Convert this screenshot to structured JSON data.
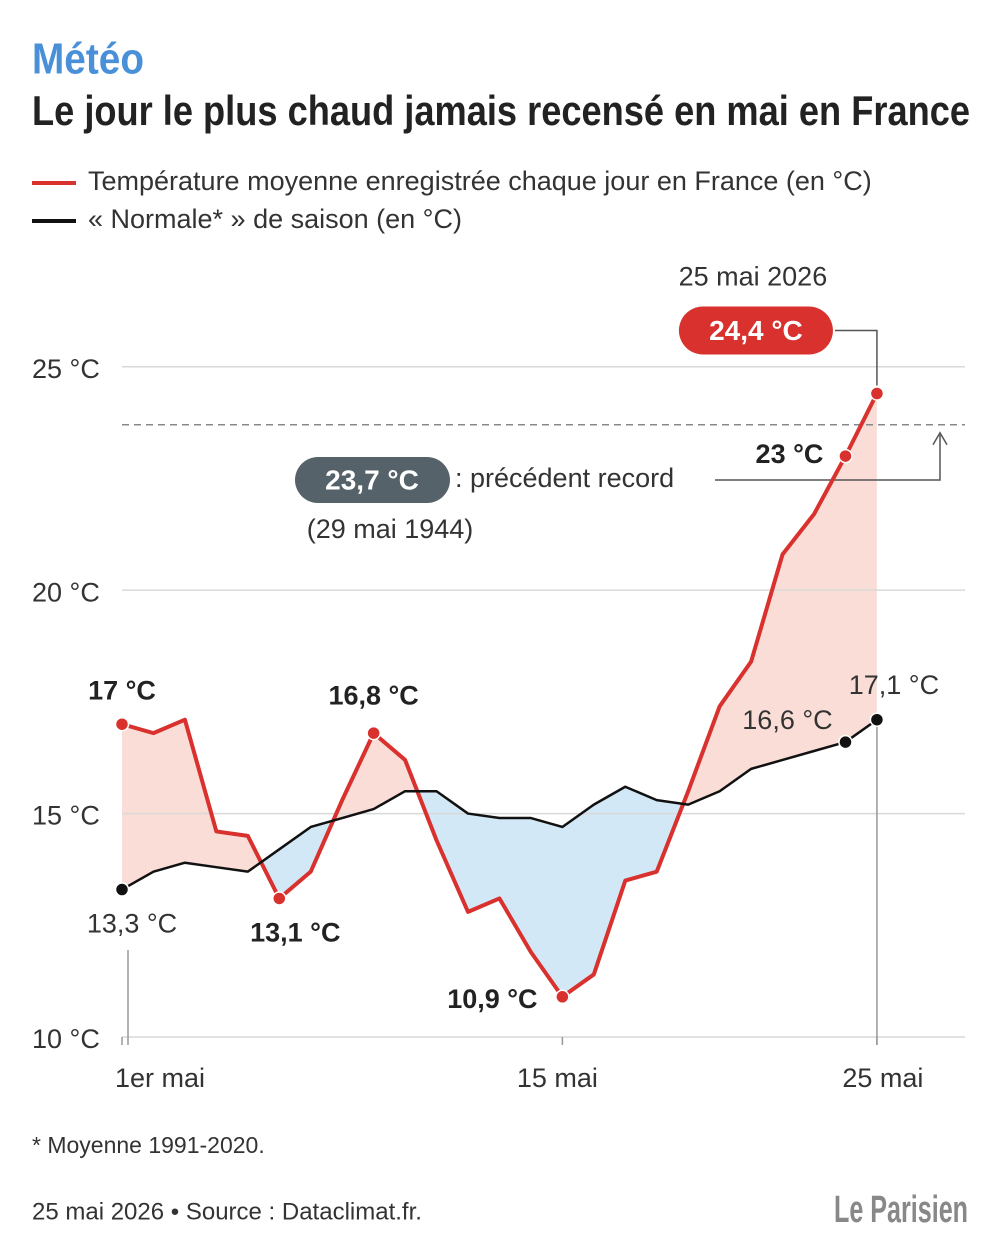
{
  "chart_data": {
    "type": "line",
    "kicker": "Météo",
    "title": "Le jour le plus chaud jamais recensé en mai en France",
    "x": [
      1,
      2,
      3,
      4,
      5,
      6,
      7,
      8,
      9,
      10,
      11,
      12,
      13,
      14,
      15,
      16,
      17,
      18,
      19,
      20,
      21,
      22,
      23,
      24,
      25
    ],
    "series": [
      {
        "name": "Température moyenne enregistrée chaque jour en France (en °C)",
        "color": "#d8312e",
        "values": [
          17,
          16.8,
          17.1,
          14.6,
          14.5,
          13.1,
          13.7,
          15.3,
          16.8,
          16.2,
          14.4,
          12.8,
          13.1,
          11.9,
          10.9,
          11.4,
          13.5,
          13.7,
          15.5,
          17.4,
          18.4,
          20.8,
          21.7,
          23,
          24.4
        ],
        "value_labels": [
          "17 °C",
          null,
          null,
          null,
          null,
          "13,1 °C",
          null,
          null,
          "16,8 °C",
          null,
          null,
          null,
          null,
          null,
          "10,9 °C",
          null,
          null,
          null,
          null,
          null,
          null,
          null,
          null,
          "23 °C",
          "24,4 °C"
        ]
      },
      {
        "name": "« Normale* » de saison (en °C)",
        "color": "#111111",
        "values": [
          13.3,
          13.7,
          13.9,
          13.8,
          13.7,
          14.2,
          14.7,
          14.9,
          15.1,
          15.5,
          15.5,
          15.0,
          14.9,
          14.9,
          14.7,
          15.2,
          15.6,
          15.3,
          15.2,
          15.5,
          16.0,
          16.2,
          16.4,
          16.6,
          17.1
        ],
        "value_labels": [
          "13,3 °C",
          null,
          null,
          null,
          null,
          null,
          null,
          null,
          null,
          null,
          null,
          null,
          null,
          null,
          null,
          null,
          null,
          null,
          null,
          null,
          null,
          null,
          null,
          "16,6 °C",
          "17,1 °C"
        ]
      }
    ],
    "xlim": [
      1,
      27.8
    ],
    "xticks": [
      {
        "value": 1,
        "label": "1er mai"
      },
      {
        "value": 15,
        "label": "15 mai"
      },
      {
        "value": 25,
        "label": "25 mai"
      }
    ],
    "ylim": [
      10,
      26
    ],
    "yticks": [
      {
        "value": 10,
        "label": "10 °C"
      },
      {
        "value": 15,
        "label": "15 °C"
      },
      {
        "value": 20,
        "label": "20 °C"
      },
      {
        "value": 25,
        "label": "25 °C"
      }
    ],
    "grid": true,
    "record": {
      "value": 23.7,
      "label": "23,7 °C",
      "text": ": précédent record",
      "date": "(29 mai 1944)"
    },
    "peak_date": "25 mai 2026",
    "footnote": "* Moyenne 1991-2020.",
    "source": "25 mai 2026 • Source : Dataclimat.fr.",
    "brand": "Le Parisien"
  }
}
